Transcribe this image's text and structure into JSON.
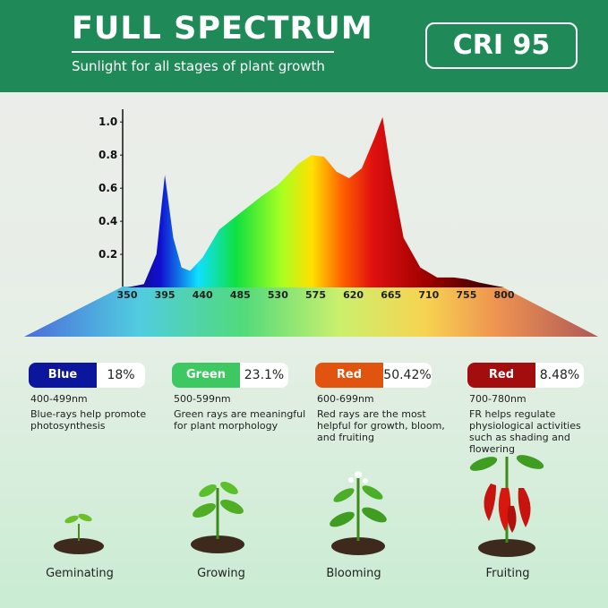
{
  "header": {
    "title": "FULL SPECTRUM",
    "subtitle": "Sunlight for all stages of plant growth",
    "badge": "CRI 95"
  },
  "chart_data": {
    "type": "area",
    "x": [
      350,
      370,
      385,
      395,
      405,
      415,
      425,
      440,
      460,
      485,
      510,
      530,
      555,
      570,
      585,
      600,
      615,
      630,
      645,
      655,
      665,
      680,
      700,
      720,
      740,
      755,
      770,
      790,
      800
    ],
    "values": [
      0,
      0.02,
      0.2,
      0.68,
      0.3,
      0.12,
      0.1,
      0.18,
      0.35,
      0.45,
      0.55,
      0.62,
      0.75,
      0.8,
      0.79,
      0.7,
      0.66,
      0.72,
      0.9,
      1.03,
      0.7,
      0.3,
      0.12,
      0.06,
      0.06,
      0.05,
      0.03,
      0.01,
      0
    ],
    "xlim": [
      350,
      800
    ],
    "xticks": [
      350,
      395,
      440,
      485,
      530,
      575,
      620,
      665,
      710,
      755,
      800
    ],
    "ylim": [
      0,
      1.05
    ],
    "yticks": [
      0.2,
      0.4,
      0.6,
      0.8,
      {
        "value": 1,
        "label": "1.0"
      }
    ]
  },
  "bands": [
    {
      "name": "Blue",
      "percent": "18%",
      "range": "400-499nm",
      "description": "Blue-rays help promote photosynthesis",
      "color": "#0b169c"
    },
    {
      "name": "Green",
      "percent": "23.1%",
      "range": "500-599nm",
      "description": "Green rays are meaningful for plant morphology",
      "color": "#3ec862"
    },
    {
      "name": "Red",
      "percent": "50.42%",
      "range": "600-699nm",
      "description": "Red rays are the most helpful for growth, bloom, and fruiting",
      "color": "#e0540f"
    },
    {
      "name": "Red",
      "percent": "8.48%",
      "range": "700-780nm",
      "description": "FR helps regulate physiological activities such as shading and flowering",
      "color": "#a30d0d"
    }
  ],
  "stages": [
    "Geminating",
    "Growing",
    "Blooming",
    "Fruiting"
  ]
}
